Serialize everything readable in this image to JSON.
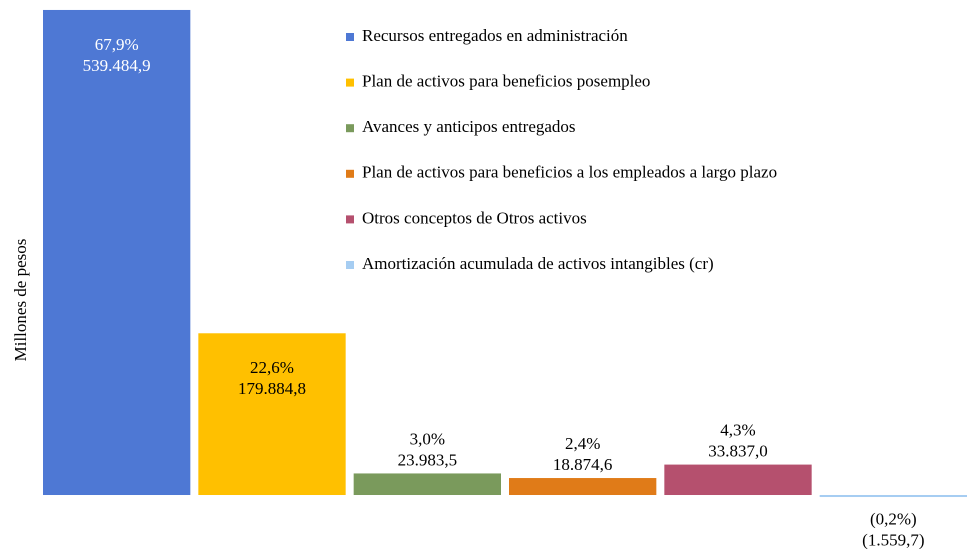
{
  "chart_data": {
    "type": "bar",
    "y_label": "Millones de pesos",
    "categories": [
      "Recursos entregados en administración",
      "Plan de activos para beneficios posempleo",
      "Avances y anticipos entregados",
      "Plan de activos para beneficios a los empleados a largo plazo",
      "Otros conceptos de Otros activos",
      "Amortización acumulada de activos intangibles (cr)"
    ],
    "values": [
      539484.9,
      179884.8,
      23983.5,
      18874.6,
      33837.0,
      -1559.7
    ],
    "value_labels": [
      "539.484,9",
      "179.884,8",
      "23.983,5",
      "18.874,6",
      "33.837,0",
      "(1.559,7)"
    ],
    "share_labels": [
      "67,9%",
      "22,6%",
      "3,0%",
      "2,4%",
      "4,3%",
      "(0,2%)"
    ],
    "colors": [
      "#4e78d4",
      "#ffc000",
      "#7a9a5c",
      "#e07b18",
      "#b5506e",
      "#a6cdf2"
    ],
    "ylim": [
      -10000,
      545000
    ],
    "legend": "top-right"
  }
}
